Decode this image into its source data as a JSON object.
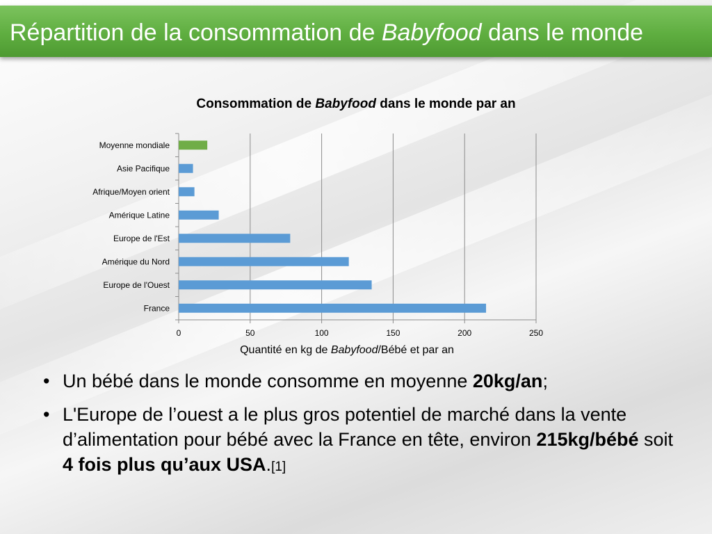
{
  "slide": {
    "title_before": "Répartition de la consommation de ",
    "title_italic": "Babyfood",
    "title_after": " dans le monde"
  },
  "chart_data": {
    "type": "bar",
    "orientation": "horizontal",
    "title_before": "Consommation de ",
    "title_italic": "Babyfood",
    "title_after": " dans le monde par an",
    "xlabel_before": "Quantité en kg de ",
    "xlabel_italic": "Babyfood",
    "xlabel_after": "/Bébé et par an",
    "ylabel": "",
    "categories": [
      "Moyenne mondiale",
      "Asie Pacifique",
      "Afrique/Moyen orient",
      "Amérique Latine",
      "Europe de l'Est",
      "Amérique du Nord",
      "Europe de l'Ouest",
      "France"
    ],
    "values": [
      20,
      10,
      11,
      28,
      78,
      119,
      135,
      215
    ],
    "bar_colors": [
      "#70ad47",
      "#5b9bd5",
      "#5b9bd5",
      "#5b9bd5",
      "#5b9bd5",
      "#5b9bd5",
      "#5b9bd5",
      "#5b9bd5"
    ],
    "xlim": [
      0,
      250
    ],
    "xticks": [
      0,
      50,
      100,
      150,
      200,
      250
    ],
    "grid": true,
    "legend": "none"
  },
  "bullets": {
    "marker": "•",
    "b1_text": "Un bébé dans le monde consomme en moyenne ",
    "b1_bold": "20kg/an",
    "b1_end": ";",
    "b2_text": "L'Europe de l’ouest a le plus gros potentiel de marché dans la vente d’alimentation pour bébé avec la France en tête, environ ",
    "b2_bold1": "215kg/bébé",
    "b2_mid": " soit ",
    "b2_bold2": "4 fois plus qu’aux USA",
    "b2_end": ".",
    "b2_ref": "[1]"
  }
}
